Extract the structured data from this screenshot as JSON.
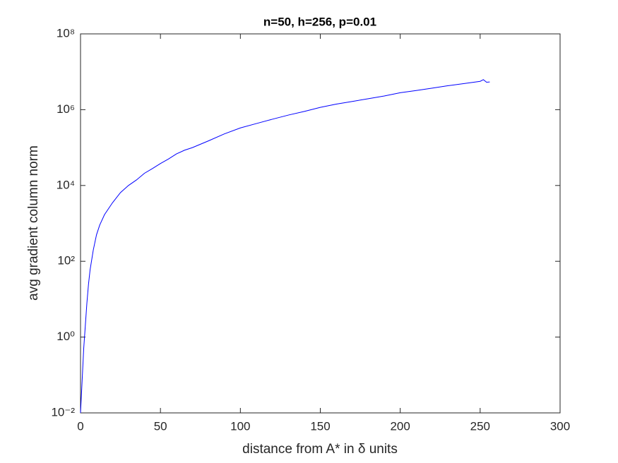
{
  "chart_data": {
    "type": "line",
    "title": "n=50, h=256, p=0.01",
    "x_label": "distance from A* in δ units",
    "y_label": "avg gradient column norm",
    "y_scale": "log",
    "grid": false,
    "xlim": [
      0,
      300
    ],
    "xticks": [
      0,
      50,
      100,
      150,
      200,
      250,
      300
    ],
    "ylim": [
      0.01,
      100000000
    ],
    "yticks": [
      {
        "value": 0.01,
        "label": "10⁻²"
      },
      {
        "value": 1,
        "label": "10⁰"
      },
      {
        "value": 100,
        "label": "10²"
      },
      {
        "value": 10000,
        "label": "10⁴"
      },
      {
        "value": 1000000,
        "label": "10⁶"
      },
      {
        "value": 100000000,
        "label": "10⁸"
      }
    ],
    "x": [
      0,
      1,
      2,
      3,
      4,
      5,
      6,
      8,
      10,
      12,
      15,
      20,
      25,
      30,
      35,
      40,
      45,
      50,
      55,
      60,
      65,
      70,
      80,
      90,
      100,
      110,
      120,
      130,
      140,
      150,
      160,
      170,
      180,
      190,
      200,
      210,
      220,
      230,
      240,
      250,
      252,
      254,
      256
    ],
    "series": [
      {
        "color": "#0000ff",
        "values": [
          0.01,
          0.07,
          0.5,
          2,
          8,
          25,
          60,
          200,
          500,
          900,
          1700,
          3500,
          6500,
          10000,
          14000,
          21000,
          28000,
          38000,
          50000,
          68000,
          85000,
          100000,
          150000,
          230000,
          330000,
          430000,
          560000,
          720000,
          900000,
          1150000,
          1400000,
          1650000,
          1950000,
          2300000,
          2800000,
          3200000,
          3700000,
          4300000,
          4900000,
          5600000,
          6200000,
          5300000,
          5400000
        ]
      }
    ]
  }
}
